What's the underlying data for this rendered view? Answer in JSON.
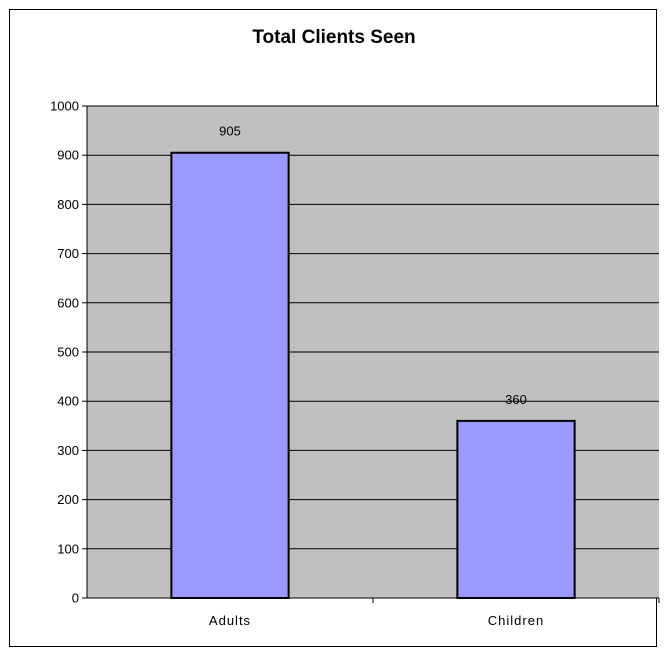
{
  "chart_data": {
    "type": "bar",
    "title": "Total Clients Seen",
    "categories": [
      "Adults",
      "Children"
    ],
    "values": [
      905,
      360
    ],
    "data_labels": [
      "905",
      "360"
    ],
    "xlabel": "",
    "ylabel": "",
    "ylim": [
      0,
      1000
    ],
    "yticks": [
      0,
      100,
      200,
      300,
      400,
      500,
      600,
      700,
      800,
      900,
      1000
    ],
    "ytick_labels": [
      "0",
      "100",
      "200",
      "300",
      "400",
      "500",
      "600",
      "700",
      "800",
      "900",
      "1000"
    ],
    "grid": true,
    "legend": "none",
    "colors": {
      "bar_fill": "#9999ff",
      "bar_stroke": "#000000",
      "plot_background": "#c0c0c0",
      "gridline": "#000000"
    }
  }
}
